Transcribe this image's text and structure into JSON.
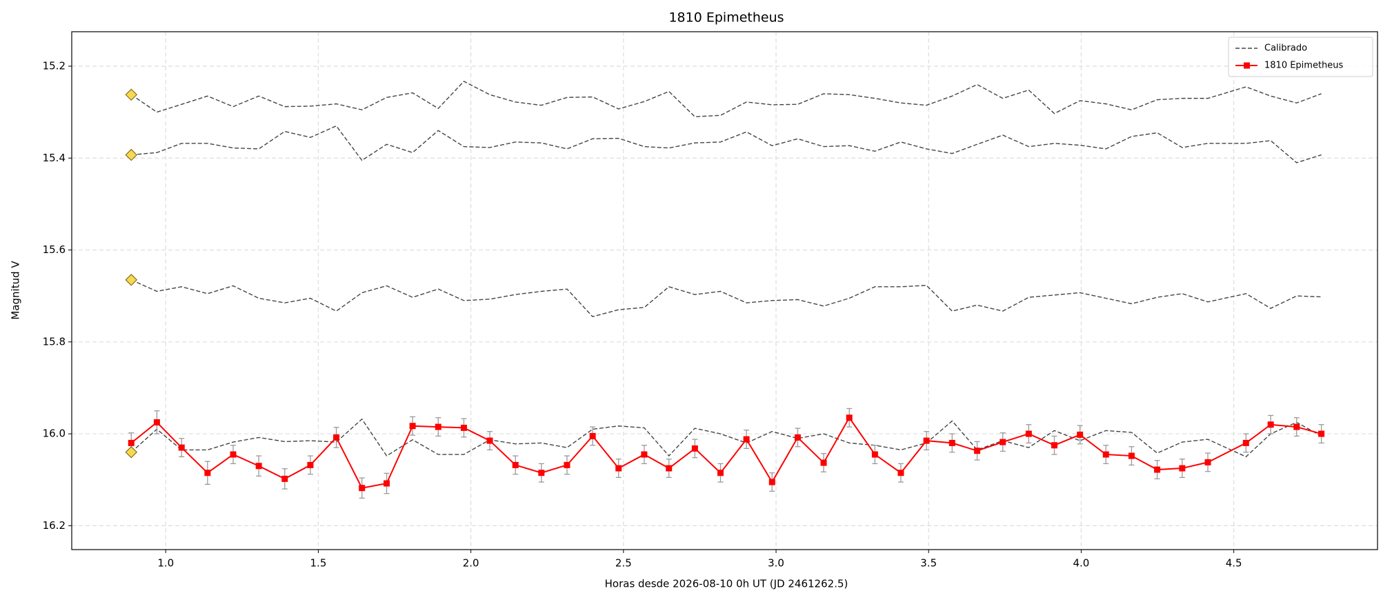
{
  "chart_data": {
    "type": "line",
    "title": "1810 Epimetheus",
    "x_label": "Horas desde 2026-08-10 0h UT (JD 2461262.5)",
    "y_label": "Magnitud V",
    "xlim": [
      0.692,
      4.971
    ],
    "ylim": [
      16.252,
      15.125
    ],
    "xticks": [
      {
        "value": 1.0,
        "label": "1.0"
      },
      1.5,
      {
        "value": 2.0,
        "label": "2.0"
      },
      2.5,
      {
        "value": 3.0,
        "label": "3.0"
      },
      3.5,
      {
        "value": 4.0,
        "label": "4.0"
      },
      4.5
    ],
    "yticks": [
      15.2,
      15.4,
      15.6,
      15.8,
      {
        "value": 16.0,
        "label": "16.0"
      },
      16.2
    ],
    "grid": true,
    "legend": "upper right",
    "x": [
      0.887,
      0.971,
      1.052,
      1.137,
      1.221,
      1.305,
      1.39,
      1.474,
      1.559,
      1.643,
      1.724,
      1.809,
      1.893,
      1.977,
      2.062,
      2.146,
      2.231,
      2.315,
      2.399,
      2.484,
      2.568,
      2.649,
      2.734,
      2.818,
      2.903,
      2.987,
      3.071,
      3.156,
      3.24,
      3.324,
      3.409,
      3.493,
      3.577,
      3.659,
      3.743,
      3.828,
      3.912,
      3.996,
      4.081,
      4.165,
      4.249,
      4.331,
      4.415,
      4.54,
      4.621,
      4.706,
      4.787
    ],
    "series": [
      {
        "name": "Calibrado",
        "color": "#444444",
        "marker_color": "#f7d84f",
        "lines": [
          [
            15.262,
            15.3,
            15.283,
            15.265,
            15.288,
            15.265,
            15.288,
            15.287,
            15.282,
            15.295,
            15.268,
            15.258,
            15.292,
            15.233,
            15.262,
            15.278,
            15.285,
            15.268,
            15.267,
            15.293,
            15.277,
            15.255,
            15.31,
            15.307,
            15.278,
            15.284,
            15.283,
            15.26,
            15.262,
            15.27,
            15.28,
            15.285,
            15.265,
            15.24,
            15.27,
            15.252,
            15.303,
            15.275,
            15.282,
            15.295,
            15.273,
            15.27,
            15.27,
            15.245,
            15.265,
            15.28,
            15.26
          ],
          [
            15.393,
            15.388,
            15.368,
            15.368,
            15.378,
            15.38,
            15.342,
            15.355,
            15.33,
            15.405,
            15.37,
            15.388,
            15.34,
            15.375,
            15.377,
            15.365,
            15.367,
            15.38,
            15.358,
            15.357,
            15.375,
            15.378,
            15.367,
            15.365,
            15.343,
            15.373,
            15.358,
            15.375,
            15.373,
            15.385,
            15.365,
            15.38,
            15.39,
            15.37,
            15.35,
            15.375,
            15.368,
            15.372,
            15.38,
            15.353,
            15.345,
            15.377,
            15.368,
            15.368,
            15.362,
            15.41,
            15.393
          ],
          [
            15.665,
            15.69,
            15.68,
            15.695,
            15.678,
            15.705,
            15.715,
            15.705,
            15.733,
            15.693,
            15.678,
            15.703,
            15.685,
            15.71,
            15.707,
            15.697,
            15.69,
            15.685,
            15.745,
            15.73,
            15.725,
            15.68,
            15.697,
            15.69,
            15.715,
            15.71,
            15.708,
            15.722,
            15.705,
            15.68,
            15.68,
            15.677,
            15.733,
            15.72,
            15.733,
            15.703,
            15.698,
            15.693,
            15.705,
            15.717,
            15.703,
            15.695,
            15.713,
            15.695,
            15.727,
            15.7,
            15.702
          ],
          [
            16.04,
            15.99,
            16.035,
            16.035,
            16.018,
            16.008,
            16.017,
            16.015,
            16.018,
            15.968,
            16.048,
            16.013,
            16.045,
            16.045,
            16.013,
            16.022,
            16.02,
            16.03,
            15.99,
            15.983,
            15.987,
            16.048,
            15.988,
            16.0,
            16.02,
            15.995,
            16.01,
            16.0,
            16.02,
            16.025,
            16.035,
            16.02,
            15.972,
            16.035,
            16.015,
            16.03,
            15.993,
            16.015,
            15.993,
            15.997,
            16.042,
            16.018,
            16.012,
            16.05,
            16.0,
            15.975,
            16.005
          ]
        ]
      },
      {
        "name": "1810 Epimetheus",
        "color": "#ff0000",
        "error_color": "#999999",
        "values": [
          16.02,
          15.975,
          16.03,
          16.085,
          16.045,
          16.07,
          16.098,
          16.068,
          16.008,
          16.118,
          16.108,
          15.983,
          15.985,
          15.987,
          16.015,
          16.068,
          16.085,
          16.068,
          16.005,
          16.075,
          16.045,
          16.075,
          16.032,
          16.085,
          16.012,
          16.105,
          16.008,
          16.063,
          15.965,
          16.045,
          16.085,
          16.015,
          16.02,
          16.037,
          16.018,
          16.0,
          16.025,
          16.002,
          16.045,
          16.048,
          16.078,
          16.075,
          16.062,
          16.02,
          15.98,
          15.985,
          16.0
        ],
        "errors": [
          0.022,
          0.025,
          0.02,
          0.025,
          0.02,
          0.022,
          0.022,
          0.02,
          0.022,
          0.022,
          0.022,
          0.02,
          0.02,
          0.02,
          0.02,
          0.02,
          0.02,
          0.02,
          0.02,
          0.02,
          0.02,
          0.02,
          0.02,
          0.02,
          0.02,
          0.02,
          0.02,
          0.02,
          0.02,
          0.02,
          0.02,
          0.02,
          0.02,
          0.02,
          0.02,
          0.02,
          0.02,
          0.02,
          0.02,
          0.02,
          0.02,
          0.02,
          0.02,
          0.02,
          0.02,
          0.02,
          0.02
        ]
      }
    ]
  }
}
